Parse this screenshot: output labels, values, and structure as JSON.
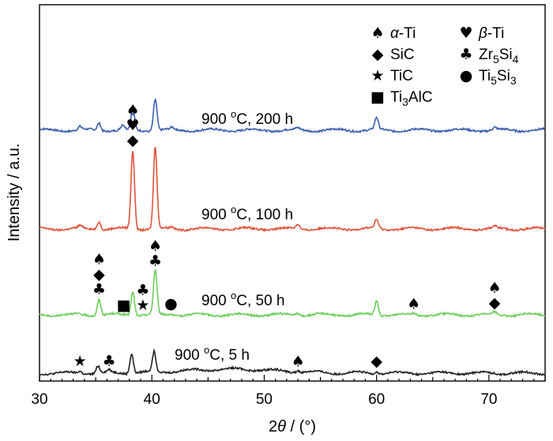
{
  "chart_data": {
    "type": "line",
    "xlabel": "2θ / (°)",
    "ylabel": "Intensity / a.u.",
    "xlim": [
      30,
      75
    ],
    "xticks": [
      30,
      40,
      50,
      60,
      70
    ],
    "y_tick_labels": false,
    "grid": false,
    "legend_position": "top-right",
    "legend": [
      {
        "symbol": "♠",
        "label": "α-Ti"
      },
      {
        "symbol": "♥",
        "label": "β-Ti"
      },
      {
        "symbol": "◆",
        "label": "SiC"
      },
      {
        "symbol": "♣",
        "label": "Zr5Si4"
      },
      {
        "symbol": "★",
        "label": "TiC"
      },
      {
        "symbol": "●",
        "label": "Ti5Si3"
      },
      {
        "symbol": "■",
        "label": "Ti3AlC"
      }
    ],
    "series": [
      {
        "name": "900 °C, 200 h",
        "label_parts": [
          "900 ",
          "o",
          "C, 200 h"
        ],
        "color": "#3a5fb0",
        "peaks": [
          {
            "x": 33.6,
            "h": 0.2
          },
          {
            "x": 35.3,
            "h": 0.45
          },
          {
            "x": 37.4,
            "h": 0.3
          },
          {
            "x": 38.3,
            "h": 1.3
          },
          {
            "x": 40.3,
            "h": 2.0
          },
          {
            "x": 41.8,
            "h": 0.12
          },
          {
            "x": 53.0,
            "h": 0.1
          },
          {
            "x": 60.0,
            "h": 0.75
          },
          {
            "x": 70.5,
            "h": 0.15
          }
        ],
        "markers": []
      },
      {
        "name": "900 °C, 100 h",
        "label_parts": [
          "900 ",
          "o",
          "C, 100 h"
        ],
        "color": "#e0533b",
        "peaks": [
          {
            "x": 33.6,
            "h": 0.15
          },
          {
            "x": 35.3,
            "h": 0.5
          },
          {
            "x": 38.3,
            "h": 5.0
          },
          {
            "x": 40.3,
            "h": 5.2
          },
          {
            "x": 41.8,
            "h": 0.12
          },
          {
            "x": 53.0,
            "h": 0.3
          },
          {
            "x": 60.0,
            "h": 0.55
          },
          {
            "x": 70.5,
            "h": 0.12
          }
        ],
        "markers": [
          {
            "x": 38.3,
            "stack": [
              "♠",
              "♥",
              "◆"
            ]
          }
        ]
      },
      {
        "name": "900 °C, 50 h",
        "label_parts": [
          "900 ",
          "o",
          "C, 50 h"
        ],
        "color": "#6ccf5a",
        "peaks": [
          {
            "x": 35.3,
            "h": 1.0
          },
          {
            "x": 38.3,
            "h": 1.5
          },
          {
            "x": 40.3,
            "h": 2.8
          },
          {
            "x": 41.7,
            "h": 0.1
          },
          {
            "x": 53.0,
            "h": 0.15
          },
          {
            "x": 60.0,
            "h": 0.9
          },
          {
            "x": 63.3,
            "h": 0.08
          },
          {
            "x": 70.5,
            "h": 0.15
          }
        ],
        "markers": [
          {
            "x": 35.3,
            "stack": [
              "♠",
              "◆",
              "♣"
            ]
          },
          {
            "x": 37.5,
            "stack": [
              "■"
            ]
          },
          {
            "x": 39.2,
            "stack": [
              "♣",
              "★"
            ]
          },
          {
            "x": 40.3,
            "stack": [
              "♠",
              "♣"
            ]
          },
          {
            "x": 41.7,
            "stack": [
              "●"
            ]
          },
          {
            "x": 63.3,
            "stack": [
              "♠"
            ]
          },
          {
            "x": 70.5,
            "stack": [
              "♠",
              "◆"
            ]
          }
        ]
      },
      {
        "name": "900 °C, 5 h",
        "label_parts": [
          "900 ",
          "o",
          "C, 5 h"
        ],
        "color": "#222222",
        "peaks": [
          {
            "x": 33.6,
            "h": 0.15
          },
          {
            "x": 35.2,
            "h": 0.45
          },
          {
            "x": 36.2,
            "h": 0.15
          },
          {
            "x": 38.2,
            "h": 1.25
          },
          {
            "x": 40.2,
            "h": 1.25
          },
          {
            "x": 53.0,
            "h": 0.12
          },
          {
            "x": 60.0,
            "h": 0.15
          }
        ],
        "markers": [
          {
            "x": 33.6,
            "stack": [
              "★"
            ]
          },
          {
            "x": 36.2,
            "stack": [
              "♣"
            ]
          },
          {
            "x": 53.0,
            "stack": [
              "♠"
            ]
          },
          {
            "x": 60.0,
            "stack": [
              "◆"
            ]
          }
        ]
      }
    ]
  }
}
